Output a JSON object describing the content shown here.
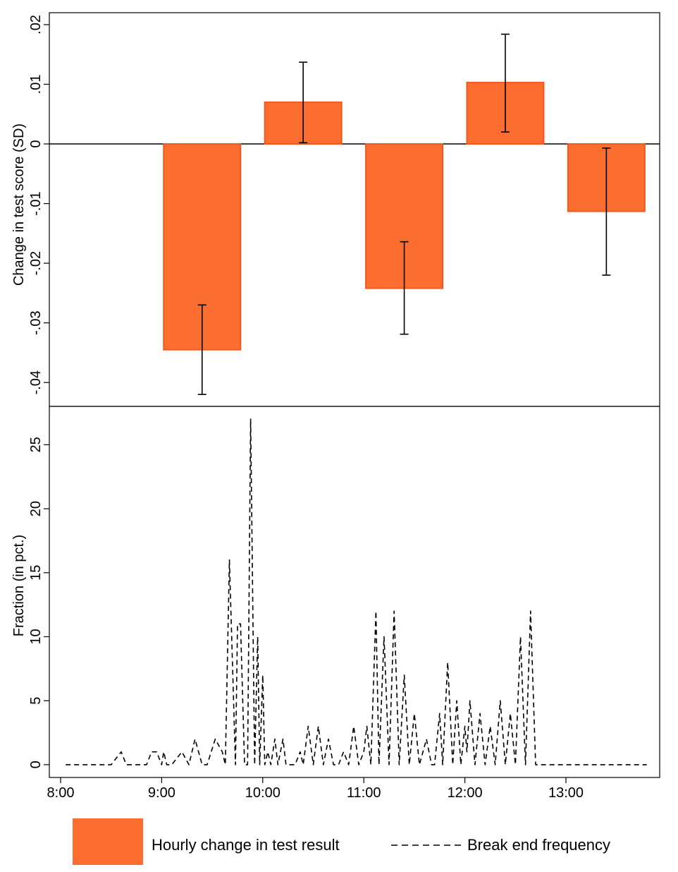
{
  "chart_data": [
    {
      "type": "bar",
      "panel": "top",
      "ylabel": "Change in test score (SD)",
      "ylim": [
        -0.044,
        0.022
      ],
      "yticks": [
        0.02,
        0.01,
        0,
        -0.01,
        -0.02,
        -0.03,
        -0.04
      ],
      "ytick_labels": [
        ".02",
        ".01",
        "0",
        "-.01",
        "-.02",
        "-.03",
        "-.04"
      ],
      "bar_width_hours": 0.76,
      "x_centers": [
        9.4,
        10.4,
        11.4,
        12.4,
        13.4
      ],
      "values": [
        -0.0345,
        0.007,
        -0.0242,
        0.0103,
        -0.0113
      ],
      "ci_lower": [
        -0.042,
        0.0002,
        -0.0319,
        0.002,
        -0.022
      ],
      "ci_upper": [
        -0.027,
        0.0137,
        -0.0164,
        0.0184,
        -0.0007
      ],
      "color": "#fc6e2f",
      "edge_color": "#ee5a1f",
      "grid": false
    },
    {
      "type": "line",
      "panel": "bottom",
      "ylabel": "Fraction (in pct.)",
      "ylim": [
        -1,
        28
      ],
      "yticks": [
        0,
        5,
        10,
        15,
        20,
        25
      ],
      "ytick_labels": [
        "0",
        "5",
        "10",
        "15",
        "20",
        "25"
      ],
      "xlim": [
        8.0,
        14.1
      ],
      "xticks": [
        8,
        9,
        10,
        11,
        12,
        13
      ],
      "xtick_labels": [
        "8:00",
        "9:00",
        "10:00",
        "11:00",
        "12:00",
        "13:00"
      ],
      "line_style": "dashed",
      "x": [
        8.05,
        8.2,
        8.35,
        8.5,
        8.6,
        8.65,
        8.75,
        8.85,
        8.9,
        8.95,
        9.0,
        9.02,
        9.05,
        9.1,
        9.2,
        9.27,
        9.33,
        9.4,
        9.45,
        9.53,
        9.6,
        9.63,
        9.67,
        9.73,
        9.75,
        9.78,
        9.82,
        9.85,
        9.88,
        9.92,
        9.95,
        9.97,
        10.0,
        10.02,
        10.05,
        10.08,
        10.12,
        10.15,
        10.2,
        10.23,
        10.27,
        10.32,
        10.37,
        10.4,
        10.45,
        10.5,
        10.55,
        10.6,
        10.65,
        10.7,
        10.75,
        10.8,
        10.85,
        10.9,
        10.95,
        11.0,
        11.03,
        11.07,
        11.12,
        11.15,
        11.2,
        11.25,
        11.3,
        11.35,
        11.4,
        11.45,
        11.5,
        11.55,
        11.62,
        11.67,
        11.7,
        11.75,
        11.78,
        11.83,
        11.88,
        11.92,
        11.96,
        12.0,
        12.02,
        12.05,
        12.1,
        12.15,
        12.2,
        12.25,
        12.3,
        12.35,
        12.4,
        12.45,
        12.5,
        12.55,
        12.6,
        12.65,
        12.7,
        12.75,
        12.8,
        12.85,
        12.9,
        12.95,
        13.0,
        13.05,
        13.1,
        13.15,
        13.2,
        13.25,
        13.3,
        13.35,
        13.4,
        13.45,
        13.5,
        13.55,
        13.6,
        13.65,
        13.7,
        13.75,
        13.8
      ],
      "values": [
        0,
        0,
        0,
        0,
        1,
        0,
        0,
        0,
        1,
        1,
        0,
        1,
        0,
        0,
        1,
        0,
        2,
        0,
        0,
        2,
        1,
        0,
        16,
        0,
        11,
        11,
        0,
        0,
        27,
        0,
        10,
        0,
        7,
        0,
        1,
        0,
        2,
        0,
        2,
        0,
        0,
        0,
        1,
        0,
        3,
        0,
        3,
        0,
        2,
        0,
        0,
        1,
        0,
        3,
        0,
        1,
        3,
        0,
        12,
        0,
        10,
        0,
        12,
        0,
        7,
        0,
        4,
        0,
        2,
        0,
        0,
        4,
        0,
        8,
        0,
        5,
        0,
        3,
        1,
        5,
        0,
        4,
        0,
        3,
        0,
        5,
        0,
        4,
        0,
        10,
        0,
        12,
        0,
        0,
        0,
        0,
        0,
        0,
        0,
        0,
        0,
        0,
        0,
        0,
        0,
        0,
        0,
        0,
        0,
        0,
        0,
        0,
        0,
        0,
        0
      ],
      "grid": false
    }
  ],
  "legend": {
    "bar_label": "Hourly change in test result",
    "line_label": "Break end frequency"
  }
}
